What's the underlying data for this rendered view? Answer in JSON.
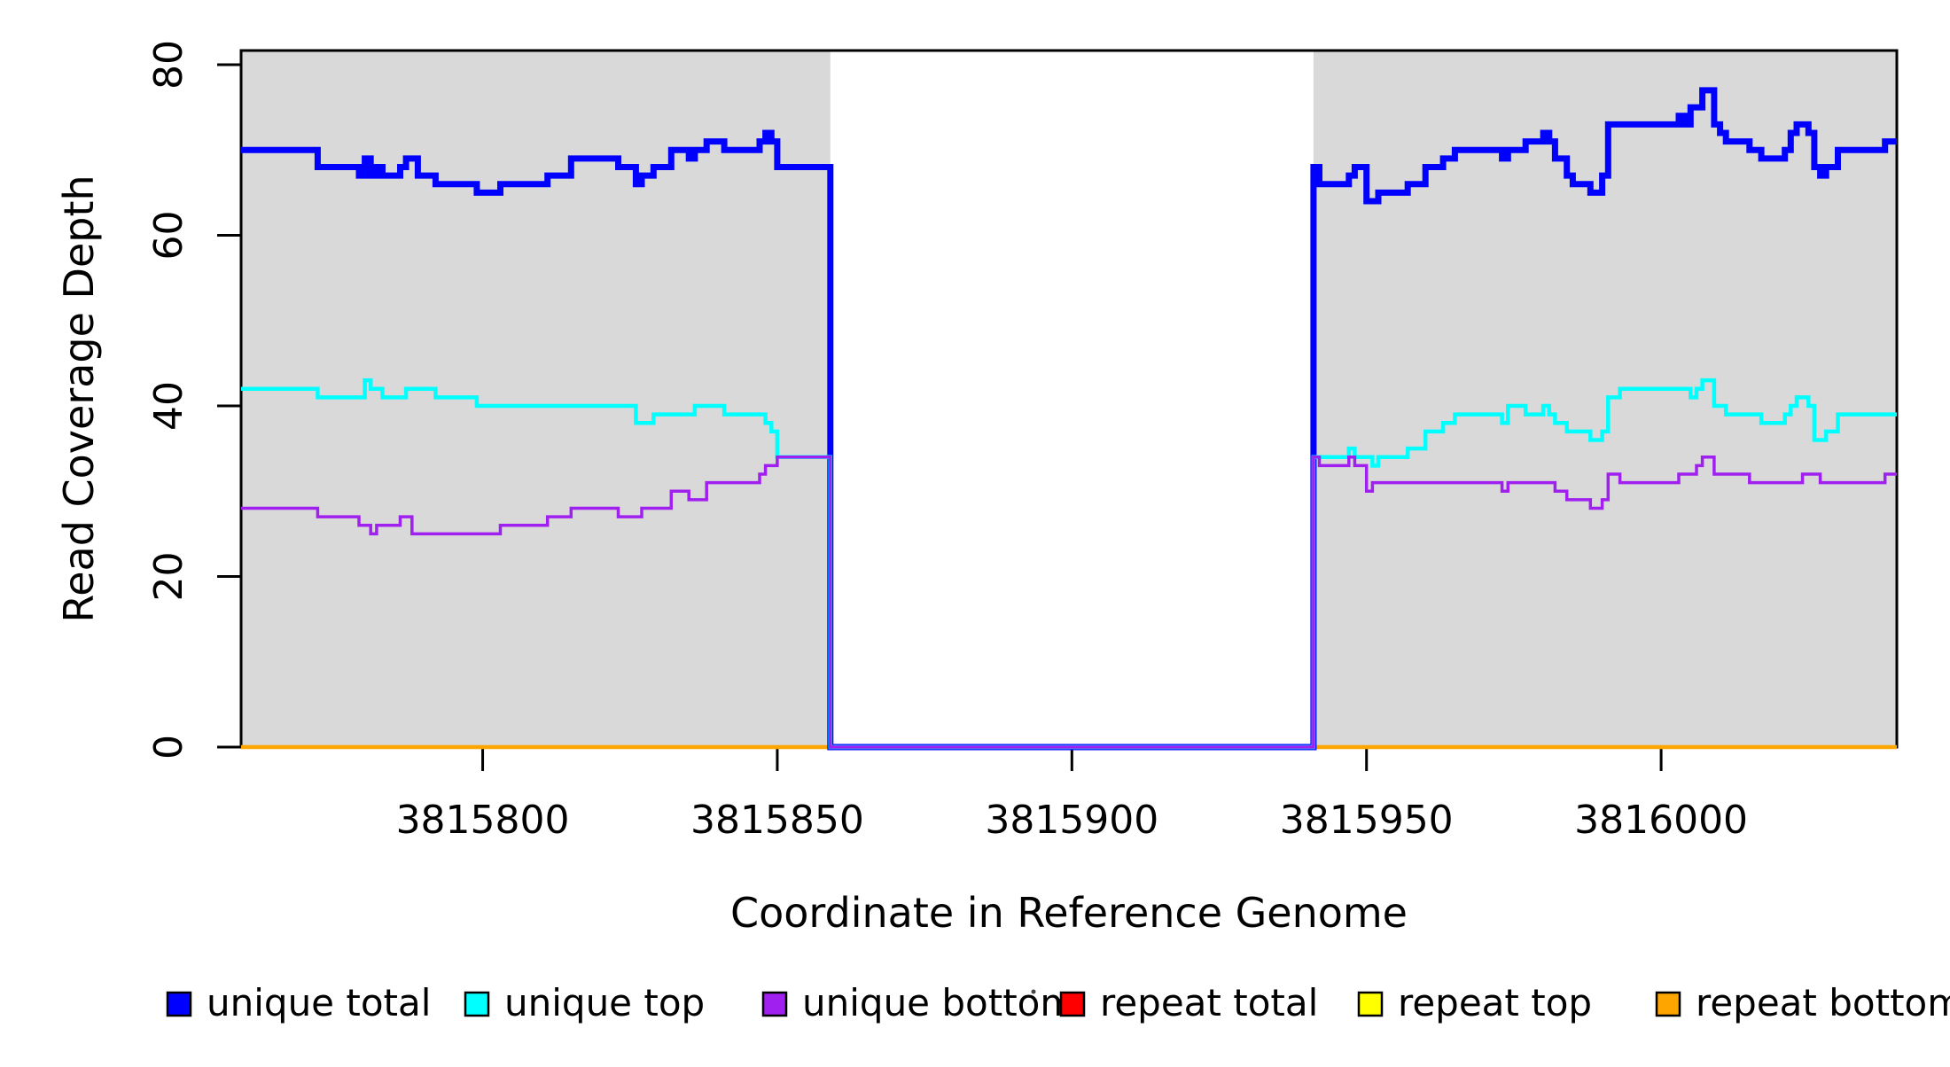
{
  "chart_data": {
    "type": "line",
    "subtype": "step",
    "title": "",
    "xlabel": "Coordinate in Reference Genome",
    "ylabel": "Read Coverage Depth",
    "xlim": [
      3815759,
      3816040
    ],
    "ylim": [
      0,
      80
    ],
    "grid": false,
    "x_ticks": [
      3815800,
      3815850,
      3815900,
      3815950,
      3816000
    ],
    "x_tick_labels": [
      "3815800",
      "3815850",
      "3815900",
      "3815950",
      "3816000"
    ],
    "y_ticks": [
      0,
      20,
      40,
      60,
      80
    ],
    "y_tick_labels": [
      "0",
      "20",
      "40",
      "60",
      "80"
    ],
    "shade_color": "#D9D9D9",
    "shaded_regions": [
      [
        3815759,
        3815859
      ],
      [
        3815941,
        3816040
      ]
    ],
    "coverage_gap": [
      3815859,
      3815941
    ],
    "series": [
      {
        "name": "repeat total",
        "color": "#FF0000",
        "x": [
          3815759,
          3816040
        ],
        "y": [
          0,
          0
        ]
      },
      {
        "name": "repeat top",
        "color": "#FFFF00",
        "x": [
          3815759,
          3816040
        ],
        "y": [
          0,
          0
        ]
      },
      {
        "name": "repeat bottom",
        "color": "#FFA500",
        "x": [
          3815759,
          3816040
        ],
        "y": [
          0,
          0
        ]
      },
      {
        "name": "unique total",
        "color": "#0000FF",
        "x": [
          3815759,
          3815772,
          3815779,
          3815780,
          3815781,
          3815782,
          3815783,
          3815786,
          3815787,
          3815789,
          3815792,
          3815799,
          3815803,
          3815811,
          3815815,
          3815823,
          3815826,
          3815827,
          3815829,
          3815832,
          3815835,
          3815836,
          3815838,
          3815841,
          3815847,
          3815848,
          3815849,
          3815850,
          3815859,
          3815941,
          3815942,
          3815947,
          3815948,
          3815950,
          3815952,
          3815957,
          3815960,
          3815963,
          3815965,
          3815973,
          3815974,
          3815977,
          3815980,
          3815981,
          3815982,
          3815984,
          3815985,
          3815988,
          3815990,
          3815991,
          3816003,
          3816004,
          3816005,
          3816007,
          3816009,
          3816010,
          3816011,
          3816015,
          3816017,
          3816021,
          3816022,
          3816023,
          3816025,
          3816026,
          3816027,
          3816028,
          3816030,
          3816038,
          3816040
        ],
        "y": [
          70,
          68,
          67,
          69,
          67,
          68,
          67,
          68,
          69,
          67,
          66,
          65,
          66,
          67,
          69,
          68,
          66,
          67,
          68,
          70,
          69,
          70,
          71,
          70,
          71,
          72,
          71,
          68,
          0,
          68,
          66,
          67,
          68,
          64,
          65,
          66,
          68,
          69,
          70,
          69,
          70,
          71,
          72,
          71,
          69,
          67,
          66,
          65,
          67,
          73,
          74,
          73,
          75,
          77,
          73,
          72,
          71,
          70,
          69,
          70,
          72,
          73,
          72,
          68,
          67,
          68,
          70,
          71,
          71
        ]
      },
      {
        "name": "unique top",
        "color": "#00FFFF",
        "x": [
          3815759,
          3815772,
          3815780,
          3815781,
          3815783,
          3815787,
          3815792,
          3815799,
          3815826,
          3815829,
          3815836,
          3815841,
          3815848,
          3815849,
          3815850,
          3815859,
          3815941,
          3815947,
          3815948,
          3815951,
          3815952,
          3815957,
          3815960,
          3815963,
          3815965,
          3815973,
          3815974,
          3815977,
          3815980,
          3815981,
          3815982,
          3815984,
          3815988,
          3815990,
          3815991,
          3815993,
          3816005,
          3816006,
          3816007,
          3816009,
          3816011,
          3816017,
          3816021,
          3816022,
          3816023,
          3816025,
          3816026,
          3816028,
          3816030,
          3816040
        ],
        "y": [
          42,
          41,
          43,
          42,
          41,
          42,
          41,
          40,
          38,
          39,
          40,
          39,
          38,
          37,
          34,
          0,
          34,
          35,
          34,
          33,
          34,
          35,
          37,
          38,
          39,
          38,
          40,
          39,
          40,
          39,
          38,
          37,
          36,
          37,
          41,
          42,
          41,
          42,
          43,
          40,
          39,
          38,
          39,
          40,
          41,
          40,
          36,
          37,
          39,
          39
        ]
      },
      {
        "name": "unique bottom",
        "color": "#A020F0",
        "x": [
          3815759,
          3815772,
          3815779,
          3815781,
          3815782,
          3815786,
          3815788,
          3815803,
          3815811,
          3815815,
          3815823,
          3815827,
          3815832,
          3815835,
          3815838,
          3815847,
          3815848,
          3815850,
          3815859,
          3815941,
          3815942,
          3815947,
          3815948,
          3815950,
          3815951,
          3815973,
          3815974,
          3815982,
          3815984,
          3815988,
          3815990,
          3815991,
          3815993,
          3816003,
          3816006,
          3816007,
          3816009,
          3816015,
          3816024,
          3816027,
          3816038,
          3816040
        ],
        "y": [
          28,
          27,
          26,
          25,
          26,
          27,
          25,
          26,
          27,
          28,
          27,
          28,
          30,
          29,
          31,
          32,
          33,
          34,
          0,
          34,
          33,
          34,
          33,
          30,
          31,
          30,
          31,
          30,
          29,
          28,
          29,
          32,
          31,
          32,
          33,
          34,
          32,
          31,
          32,
          31,
          32,
          32
        ]
      }
    ],
    "legend": {
      "position": "bottom",
      "items": [
        {
          "label": "unique total",
          "color": "#0000FF"
        },
        {
          "label": "unique top",
          "color": "#00FFFF"
        },
        {
          "label": "unique bottom",
          "color": "#A020F0"
        },
        {
          "label": "repeat total",
          "color": "#FF0000"
        },
        {
          "label": "repeat top",
          "color": "#FFFF00"
        },
        {
          "label": "repeat bottom",
          "color": "#FFA500"
        }
      ]
    }
  }
}
